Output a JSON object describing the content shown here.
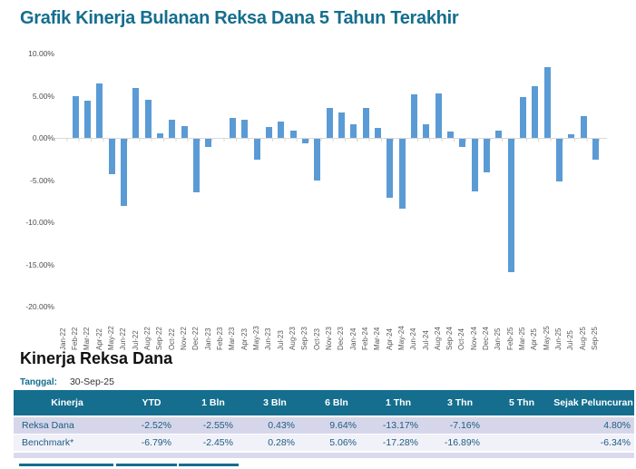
{
  "title": "Grafik Kinerja Bulanan Reksa Dana 5 Tahun Terakhir",
  "chart_data": {
    "type": "bar",
    "title": "Grafik Kinerja Bulanan Reksa Dana 5 Tahun Terakhir",
    "categories": [
      "Jan-22",
      "Feb-22",
      "Mar-22",
      "Apr-22",
      "May-22",
      "Jun-22",
      "Jul-22",
      "Aug-22",
      "Sep-22",
      "Oct-22",
      "Nov-22",
      "Dec-22",
      "Jan-23",
      "Feb-23",
      "Mar-23",
      "Apr-23",
      "May-23",
      "Jun-23",
      "Jul-23",
      "Aug-23",
      "Sep-23",
      "Oct-23",
      "Nov-23",
      "Dec-23",
      "Jan-24",
      "Feb-24",
      "Mar-24",
      "Apr-24",
      "May-24",
      "Jun-24",
      "Jul-24",
      "Aug-24",
      "Sep-24",
      "Oct-24",
      "Nov-24",
      "Dec-24",
      "Jan-25",
      "Feb-25",
      "Mar-25",
      "Apr-25",
      "May-25",
      "Jun-25",
      "Jul-25",
      "Aug-25",
      "Sep-25"
    ],
    "values": [
      0.0,
      4.9,
      4.4,
      6.5,
      -4.2,
      -8.0,
      5.9,
      4.5,
      0.5,
      2.1,
      1.4,
      -6.3,
      -1.0,
      0.0,
      2.4,
      2.2,
      -2.5,
      1.3,
      1.9,
      0.9,
      -0.5,
      -4.9,
      3.5,
      3.0,
      1.6,
      3.6,
      1.2,
      -7.0,
      -8.3,
      5.2,
      1.6,
      5.3,
      0.8,
      -1.0,
      -6.2,
      -4.0,
      0.9,
      -15.8,
      4.8,
      6.1,
      8.4,
      -5.0,
      0.4,
      2.6,
      -2.5
    ],
    "values_unit": "%",
    "xlabel": "",
    "ylabel": "",
    "ylim": [
      -20,
      10
    ],
    "y_ticks": [
      10,
      5,
      0,
      -5,
      -10,
      -15,
      -20
    ],
    "y_tick_labels": [
      "10.00%",
      "5.00%",
      "0.00%",
      "-5.00%",
      "-10.00%",
      "-15.00%",
      "-20.00%"
    ],
    "grid": false,
    "legend": "none",
    "bar_color": "#5B9BD5"
  },
  "table_section": {
    "title": "Kinerja Reksa Dana",
    "date_label": "Tanggal:",
    "date_value": "30-Sep-25",
    "columns": [
      "Kinerja",
      "YTD",
      "1 Bln",
      "3 Bln",
      "6 Bln",
      "1 Thn",
      "3 Thn",
      "5 Thn",
      "Sejak Peluncuran"
    ],
    "rows": [
      {
        "label": "Reksa Dana",
        "values": [
          "-2.52%",
          "-2.55%",
          "0.43%",
          "9.64%",
          "-13.17%",
          "-7.16%",
          "",
          "4.80%"
        ]
      },
      {
        "label": "Benchmark*",
        "values": [
          "-6.79%",
          "-2.45%",
          "0.28%",
          "5.06%",
          "-17.28%",
          "-16.89%",
          "",
          "-6.34%"
        ]
      }
    ]
  },
  "colors": {
    "accent_teal": "#156E8E",
    "bar_blue": "#5B9BD5",
    "row_alt_bg": "#D6D6EB",
    "row_light_bg": "#F1F1F9",
    "table_text": "#1E5C7E",
    "axis_text": "#595959"
  }
}
